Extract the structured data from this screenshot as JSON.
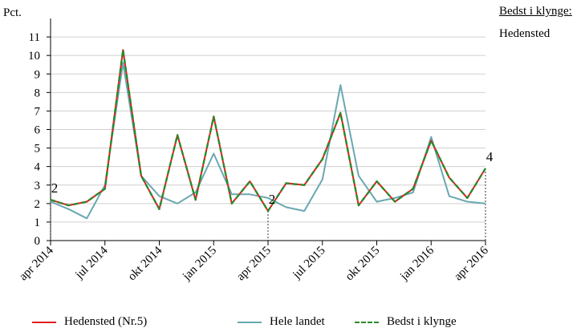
{
  "chart_data": {
    "type": "line",
    "ylabel": "Pct.",
    "ylim": [
      0,
      12
    ],
    "yticks": [
      0,
      1,
      2,
      3,
      4,
      5,
      6,
      7,
      8,
      9,
      10,
      11
    ],
    "grid": "horizontal",
    "x": [
      "2014-04",
      "2014-05",
      "2014-06",
      "2014-07",
      "2014-08",
      "2014-09",
      "2014-10",
      "2014-11",
      "2014-12",
      "2015-01",
      "2015-02",
      "2015-03",
      "2015-04",
      "2015-05",
      "2015-06",
      "2015-07",
      "2015-08",
      "2015-09",
      "2015-10",
      "2015-11",
      "2015-12",
      "2016-01",
      "2016-02",
      "2016-03",
      "2016-04"
    ],
    "xtick_labels": [
      {
        "at": "2014-04",
        "label": "apr 2014"
      },
      {
        "at": "2014-07",
        "label": "jul 2014"
      },
      {
        "at": "2014-10",
        "label": "okt 2014"
      },
      {
        "at": "2015-01",
        "label": "jan 2015"
      },
      {
        "at": "2015-04",
        "label": "apr 2015"
      },
      {
        "at": "2015-07",
        "label": "jul 2015"
      },
      {
        "at": "2015-10",
        "label": "okt 2015"
      },
      {
        "at": "2016-01",
        "label": "jan 2016"
      },
      {
        "at": "2016-04",
        "label": "apr 2016"
      }
    ],
    "series": [
      {
        "name": "Hele landet",
        "color": "#6aa8b0",
        "style": "solid",
        "values": [
          2.1,
          1.7,
          1.2,
          3.0,
          9.6,
          3.5,
          2.4,
          2.0,
          2.6,
          4.7,
          2.5,
          2.5,
          2.3,
          1.8,
          1.6,
          3.3,
          8.4,
          3.5,
          2.1,
          2.3,
          2.6,
          5.6,
          2.4,
          2.1,
          2.0
        ]
      },
      {
        "name": "Hedensted (Nr.5)",
        "color": "#e02020",
        "style": "solid",
        "values": [
          2.2,
          1.9,
          2.1,
          2.8,
          10.3,
          3.5,
          1.7,
          5.7,
          2.2,
          6.7,
          2.0,
          3.2,
          1.6,
          3.1,
          3.0,
          4.4,
          6.9,
          1.9,
          3.2,
          2.1,
          2.8,
          5.4,
          3.4,
          2.3,
          3.9
        ]
      },
      {
        "name": "Bedst i klynge",
        "color": "#2a8a2a",
        "style": "dashed",
        "values": [
          2.2,
          1.9,
          2.1,
          2.8,
          10.3,
          3.5,
          1.7,
          5.7,
          2.2,
          6.7,
          2.0,
          3.2,
          1.6,
          3.1,
          3.0,
          4.4,
          6.9,
          1.9,
          3.2,
          2.1,
          2.8,
          5.4,
          3.4,
          2.3,
          3.9
        ]
      }
    ],
    "annotations": [
      {
        "at": "2014-04",
        "label": "2",
        "value": 2.2,
        "dotted_line": true
      },
      {
        "at": "2015-04",
        "label": "2",
        "value": 1.6,
        "dotted_line": true
      },
      {
        "at": "2016-04",
        "label": "4",
        "value": 3.9,
        "dotted_line": true
      }
    ]
  },
  "side_panel": {
    "title": "Bedst i klynge:",
    "name": "Hedensted"
  },
  "legend": [
    {
      "label": "Hedensted (Nr.5)",
      "color": "#e02020",
      "style": "solid"
    },
    {
      "label": "Hele landet",
      "color": "#6aa8b0",
      "style": "solid"
    },
    {
      "label": "Bedst i klynge",
      "color": "#2a8a2a",
      "style": "dashed"
    }
  ]
}
